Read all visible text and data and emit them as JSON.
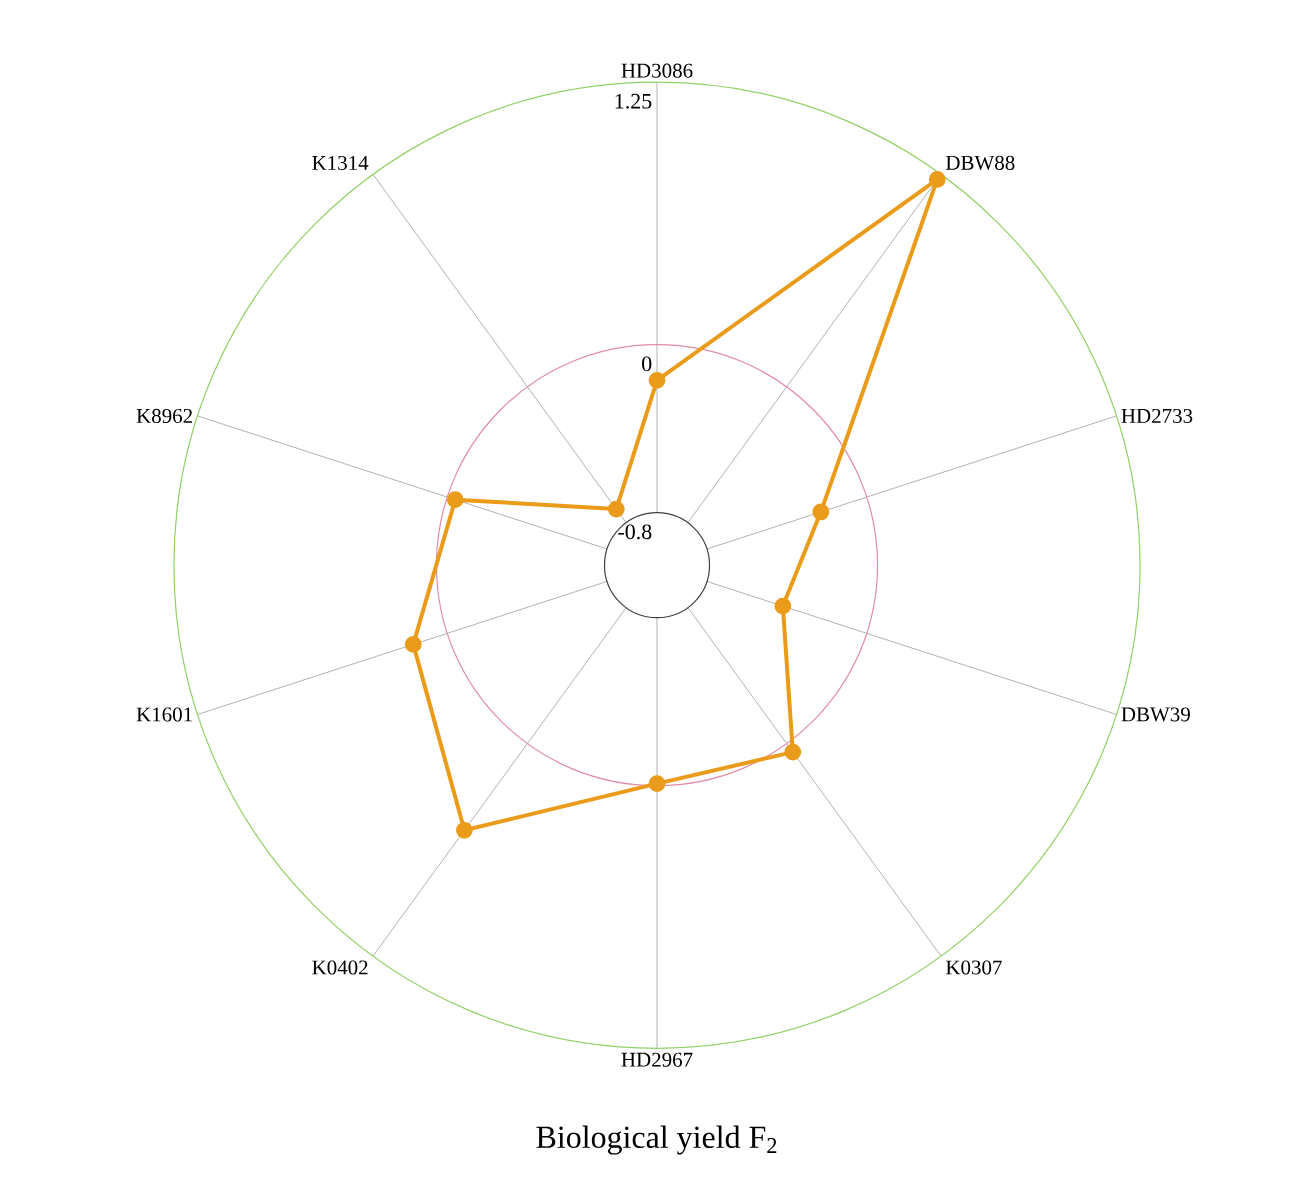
{
  "chart_data": {
    "type": "radar",
    "title": "Biological yield F$_{2}$",
    "categories": [
      "HD3086",
      "DBW88",
      "HD2733",
      "DBW39",
      "K0307",
      "HD2967",
      "K0402",
      "K1601",
      "K8962",
      "K1314"
    ],
    "series": [
      {
        "color": "#eb9b1a",
        "values": [
          -0.17,
          1.22,
          -0.23,
          -0.42,
          0.05,
          -0.01,
          0.51,
          0.17,
          -0.04,
          -0.72
        ]
      }
    ],
    "ylim": [
      -1.05,
      1.25
    ],
    "yticks": [
      -0.8,
      0,
      1.25
    ],
    "marker": "circle",
    "grid": true
  }
}
